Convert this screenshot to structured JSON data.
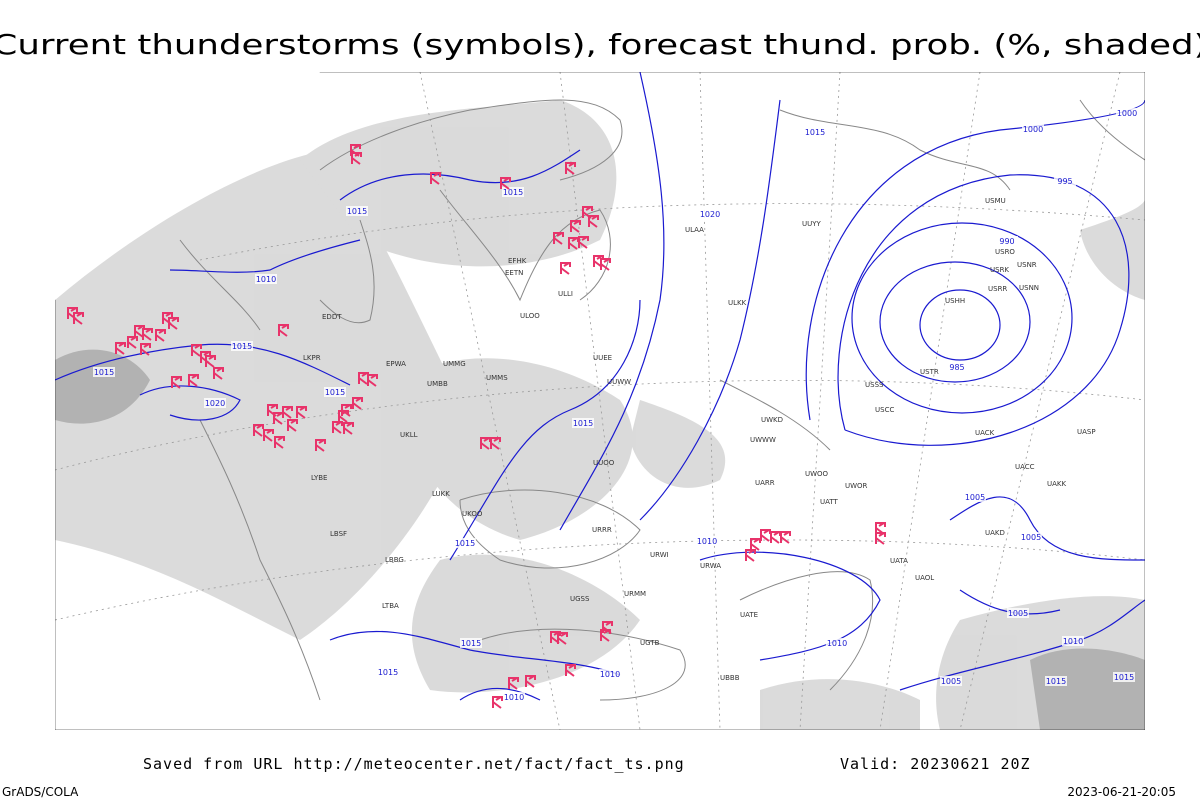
{
  "title": "Current thunderstorms (symbols), forecast thund. prob. (%, shaded)",
  "footer": {
    "source": "Saved from URL http://meteocenter.net/fact/fact_ts.png",
    "valid": "Valid: 20230621 20Z",
    "software": "GrADS/COLA",
    "timestamp": "2023-06-21-20:05"
  },
  "isobar_labels": [
    1015,
    1000,
    1000,
    1015,
    1015,
    1020,
    1010,
    995,
    990,
    985,
    1015,
    1015,
    1015,
    1020,
    1015,
    1005,
    1005,
    1015,
    1010,
    1005,
    1010,
    1010,
    1015,
    1015,
    1010,
    1010,
    1005,
    1015,
    1015
  ],
  "station_labels": [
    "USMU",
    "USRO",
    "USRK",
    "USNR",
    "USRR",
    "USNN",
    "USHH",
    "USTR",
    "USSS",
    "USCC",
    "UACK",
    "UASP",
    "UACC",
    "UAKK",
    "UAKD",
    "UATT",
    "UWOR",
    "UWOO",
    "UARR",
    "UATA",
    "UAOL",
    "EDDT",
    "LKPR",
    "EPWA",
    "UMMG",
    "UMMS",
    "UMBB",
    "UKLL",
    "LYBE",
    "LUKK",
    "LBSF",
    "LBBG",
    "LTBA",
    "UKOO",
    "ULLI",
    "EETN",
    "EFHK",
    "ULOO",
    "UUEE",
    "UUWW",
    "UUOO",
    "URRR",
    "URWI",
    "URMM",
    "UGSS",
    "UGTB",
    "UBBB",
    "UATE",
    "URWA",
    "UWKD",
    "UWWW",
    "ULAA",
    "ULKK",
    "UUYY"
  ]
}
